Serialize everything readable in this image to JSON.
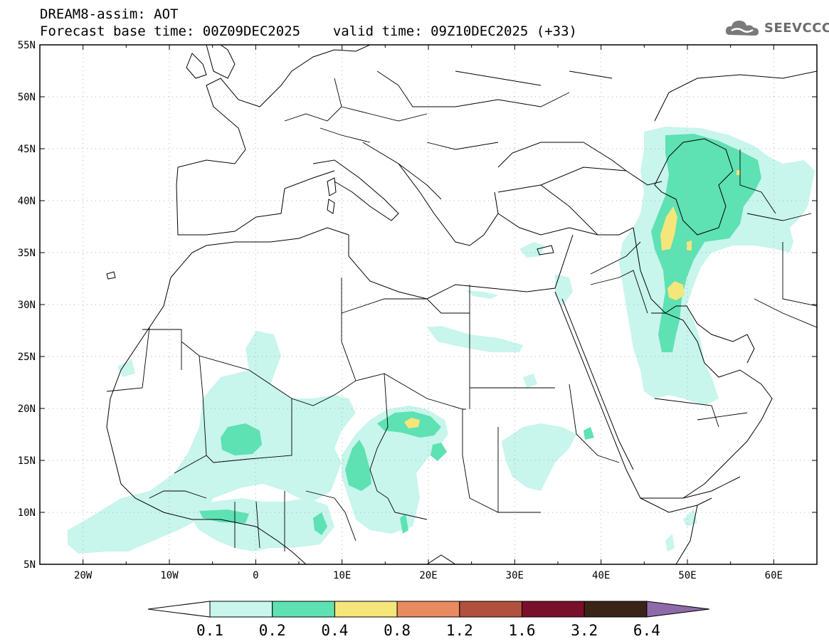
{
  "header": {
    "title_line1": "DREAM8-assim: AOT",
    "base_time_label": "Forecast base time: 00Z09DEC2025",
    "valid_time_label": "valid time: 09Z10DEC2025 (+33)"
  },
  "logo": {
    "text": "SEEVCCC",
    "icon": "cloud-icon"
  },
  "map": {
    "lon_ticks": [
      "20W",
      "10W",
      "0",
      "10E",
      "20E",
      "30E",
      "40E",
      "50E",
      "60E"
    ],
    "lat_ticks": [
      "55N",
      "50N",
      "45N",
      "40N",
      "35N",
      "30N",
      "25N",
      "20N",
      "15N",
      "10N",
      "5N"
    ],
    "extent": {
      "lon": [
        -25,
        65
      ],
      "lat": [
        5,
        55
      ]
    },
    "grid": "dotted"
  },
  "legend": {
    "labels": [
      "0.1",
      "0.2",
      "0.4",
      "0.8",
      "1.2",
      "1.6",
      "3.2",
      "6.4"
    ],
    "colors": [
      "#c8f5ec",
      "#5ee1b3",
      "#f5e67a",
      "#ea8a60",
      "#b0503d",
      "#7a0f2b",
      "#3b2417",
      "#8e6ba8"
    ]
  }
}
